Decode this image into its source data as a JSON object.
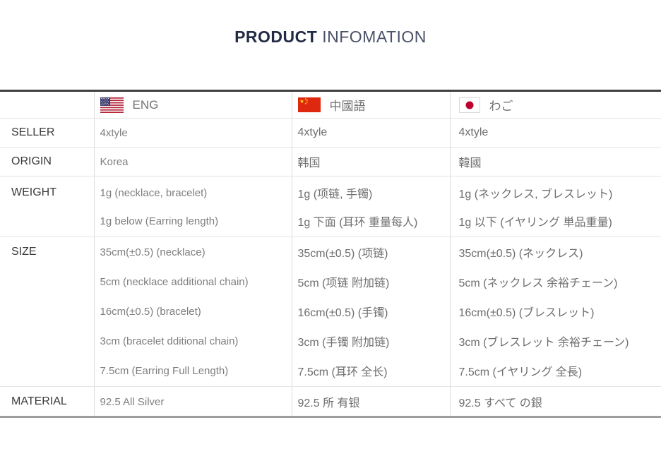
{
  "title": {
    "strong": "PRODUCT",
    "light": "INFOMATION"
  },
  "table": {
    "columns": [
      {
        "label": "ENG",
        "flag_icon": "us-flag-icon"
      },
      {
        "label": "中國語",
        "flag_icon": "china-flag-icon"
      },
      {
        "label": "わご",
        "flag_icon": "japan-flag-icon"
      }
    ],
    "rows": [
      {
        "label": "SELLER",
        "cells": [
          [
            "4xtyle"
          ],
          [
            "4xtyle"
          ],
          [
            "4xtyle"
          ]
        ]
      },
      {
        "label": "ORIGIN",
        "cells": [
          [
            "Korea"
          ],
          [
            "韩国"
          ],
          [
            "韓國"
          ]
        ]
      },
      {
        "label": "WEIGHT",
        "cells": [
          [
            "1g (necklace, bracelet)",
            "1g below (Earring length)"
          ],
          [
            "1g (项链, 手镯)",
            "1g 下面 (耳环 重量每人)"
          ],
          [
            "1g (ネックレス, ブレスレット)",
            "1g 以下 (イヤリング 単品重量)"
          ]
        ]
      },
      {
        "label": "SIZE",
        "cells": [
          [
            "35cm(±0.5)  (necklace)",
            "5cm (necklace additional chain)",
            "16cm(±0.5)  (bracelet)",
            "3cm  (bracelet dditional chain)",
            "7.5cm (Earring Full Length)"
          ],
          [
            "35cm(±0.5) (项链)",
            "5cm (项链 附加链)",
            "16cm(±0.5) (手镯)",
            "3cm (手镯 附加链)",
            "7.5cm (耳环 全长)"
          ],
          [
            "35cm(±0.5) (ネックレス)",
            "5cm (ネックレス 余裕チェーン)",
            "16cm(±0.5) (ブレスレット)",
            "3cm (ブレスレット 余裕チェーン)",
            "7.5cm (イヤリング 全長)"
          ]
        ]
      },
      {
        "label": "MATERIAL",
        "cells": [
          [
            "92.5 All Silver"
          ],
          [
            "92.5 所 有银"
          ],
          [
            "92.5 すべて の銀"
          ]
        ]
      }
    ]
  },
  "colors": {
    "title_dark": "#222b45",
    "title_light": "#4a5269",
    "row_label": "#3b3b3b",
    "text_eng": "#7e7e7e",
    "text_cjk": "#6e6e6e",
    "border_top": "#3f3f3f",
    "border_bottom": "#9e9e9e",
    "border_row": "#e4e4e4",
    "border_col": "#dcdcdc",
    "flag_us_red": "#b22234",
    "flag_us_blue": "#3c3b6e",
    "flag_cn_red": "#de2910",
    "flag_cn_yellow": "#ffde00",
    "flag_jp_red": "#bc002d"
  }
}
